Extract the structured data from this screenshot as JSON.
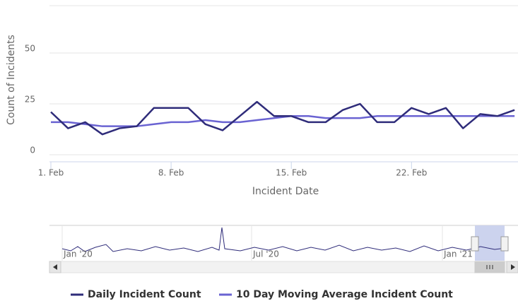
{
  "chart_data": {
    "type": "line",
    "y_axis_label": "Count of Incidents",
    "x_axis_label": "Incident Date",
    "x": [
      1,
      2,
      3,
      4,
      5,
      6,
      7,
      8,
      9,
      10,
      11,
      12,
      13,
      14,
      15,
      16,
      17,
      18,
      19,
      20,
      21,
      22,
      23,
      24,
      25,
      26,
      27,
      28
    ],
    "xlim": [
      1,
      28.2
    ],
    "xticks": [
      {
        "value": 1,
        "label": "1. Feb"
      },
      {
        "value": 8,
        "label": "8. Feb"
      },
      {
        "value": 15,
        "label": "15. Feb"
      },
      {
        "value": 22,
        "label": "22. Feb"
      }
    ],
    "ylim": [
      0,
      75
    ],
    "yticks": [
      0,
      25,
      50
    ],
    "grid": true,
    "series": [
      {
        "name": "Daily Incident Count",
        "color": "#2f2c7a",
        "values": [
          21,
          13,
          16,
          10,
          13,
          14,
          23,
          23,
          23,
          15,
          12,
          19,
          26,
          19,
          19,
          16,
          16,
          22,
          25,
          16,
          16,
          23,
          20,
          23,
          13,
          20,
          19,
          22
        ]
      },
      {
        "name": "10 Day Moving Average Incident Count",
        "color": "#6a63d2",
        "values": [
          16,
          16,
          15,
          14,
          14,
          14,
          15,
          16,
          16,
          17,
          16,
          16,
          17,
          18,
          19,
          19,
          18,
          18,
          18,
          19,
          19,
          19,
          19,
          19,
          19,
          19,
          19,
          19
        ]
      }
    ],
    "navigator_labels": [
      "Jan '20",
      "Jul '20",
      "Jan '21"
    ],
    "legend": "bottom"
  }
}
